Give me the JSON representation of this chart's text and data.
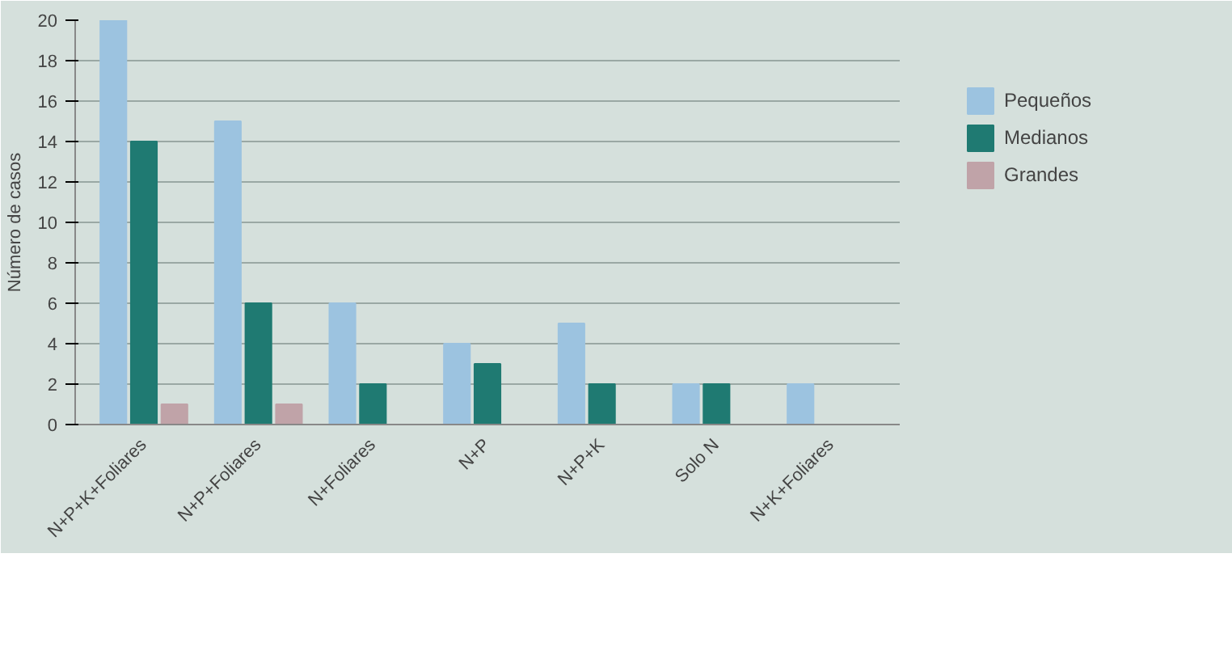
{
  "chart_data": {
    "type": "bar",
    "ylabel": "Número de casos",
    "categories": [
      "N+P+K+Foliares",
      "N+P+Foliares",
      "N+Foliares",
      "N+P",
      "N+P+K",
      "Solo N",
      "N+K+Foliares"
    ],
    "series": [
      {
        "name": "Pequeños",
        "color": "#9cc3e0",
        "values": [
          20,
          15,
          6,
          4,
          5,
          2,
          2
        ]
      },
      {
        "name": "Medianos",
        "color": "#1f7a72",
        "values": [
          14,
          6,
          2,
          3,
          2,
          2,
          null
        ]
      },
      {
        "name": "Grandes",
        "color": "#c0a3a8",
        "values": [
          1,
          1,
          null,
          null,
          null,
          null,
          null
        ]
      }
    ],
    "ylim": [
      0,
      20
    ],
    "yticks": [
      0,
      2,
      4,
      6,
      8,
      10,
      12,
      14,
      16,
      18,
      20
    ],
    "grid": "y",
    "legend": "right"
  }
}
